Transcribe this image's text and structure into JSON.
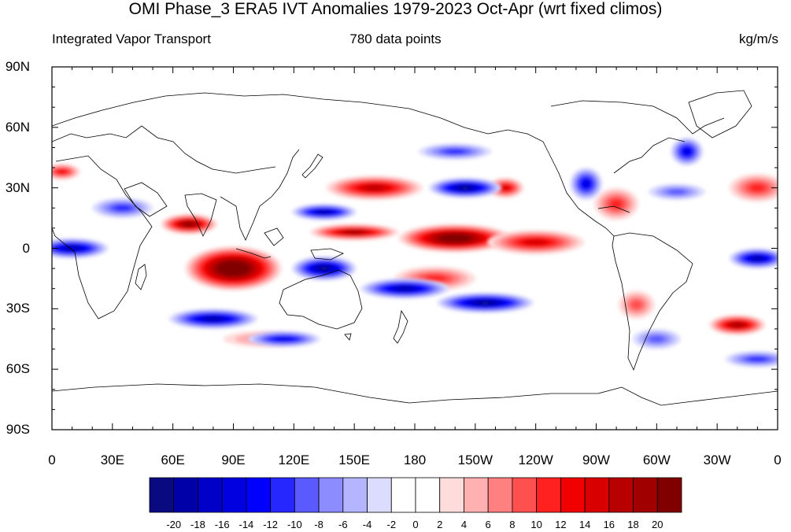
{
  "title": "OMI Phase_3 ERA5 IVT Anomalies 1979-2023 Oct-Apr (wrt fixed climos)",
  "left_string": "Integrated Vapor Transport",
  "center_string": "780 data points",
  "right_string": "kg/m/s",
  "y_ticks": [
    "90N",
    "60N",
    "30N",
    "0",
    "30S",
    "60S",
    "90S"
  ],
  "x_ticks": [
    "0",
    "30E",
    "60E",
    "90E",
    "120E",
    "150E",
    "180",
    "150W",
    "120W",
    "90W",
    "60W",
    "30W",
    "0"
  ],
  "colorbar": {
    "labels": [
      "-20",
      "-18",
      "-16",
      "-14",
      "-12",
      "-10",
      "-8",
      "-6",
      "-4",
      "-2",
      "0",
      "2",
      "4",
      "6",
      "8",
      "10",
      "12",
      "14",
      "16",
      "18",
      "20"
    ],
    "colors": [
      "#0a0a80",
      "#0000a8",
      "#0000c8",
      "#0000e0",
      "#0000ff",
      "#2626ff",
      "#5a5aff",
      "#8c8cff",
      "#b4b4ff",
      "#dcdcff",
      "#ffffff",
      "#ffffff",
      "#ffdcdc",
      "#ffb0b0",
      "#ff8080",
      "#ff5050",
      "#ff2020",
      "#f00000",
      "#d80000",
      "#b80000",
      "#a00000",
      "#800000"
    ]
  },
  "chart_data": {
    "type": "heatmap",
    "title": "OMI Phase_3 ERA5 IVT Anomalies 1979-2023 Oct-Apr (wrt fixed climos)",
    "variable": "Integrated Vapor Transport",
    "units": "kg/m/s",
    "n_points": 780,
    "lon_range": [
      0,
      360
    ],
    "lat_range": [
      -90,
      90
    ],
    "contour_levels": [
      -20,
      -18,
      -16,
      -14,
      -12,
      -10,
      -8,
      -6,
      -4,
      -2,
      0,
      2,
      4,
      6,
      8,
      10,
      12,
      14,
      16,
      18,
      20
    ],
    "anomalies": [
      {
        "lon": 90,
        "lat": -10,
        "value": 26,
        "rlon": 24,
        "rlat": 11
      },
      {
        "lon": 68,
        "lat": 12,
        "value": 20,
        "rlon": 14,
        "rlat": 5
      },
      {
        "lon": 150,
        "lat": 8,
        "value": 18,
        "rlon": 22,
        "rlat": 4
      },
      {
        "lon": 200,
        "lat": 5,
        "value": 24,
        "rlon": 28,
        "rlat": 7
      },
      {
        "lon": 240,
        "lat": 3,
        "value": 15,
        "rlon": 24,
        "rlat": 6
      },
      {
        "lon": 160,
        "lat": 30,
        "value": 16,
        "rlon": 24,
        "rlat": 6
      },
      {
        "lon": 225,
        "lat": 30,
        "value": 14,
        "rlon": 9,
        "rlat": 5
      },
      {
        "lon": 280,
        "lat": 22,
        "value": 10,
        "rlon": 11,
        "rlat": 8
      },
      {
        "lon": 350,
        "lat": 30,
        "value": 10,
        "rlon": 14,
        "rlat": 7
      },
      {
        "lon": 5,
        "lat": 38,
        "value": 12,
        "rlon": 9,
        "rlat": 4
      },
      {
        "lon": 340,
        "lat": -38,
        "value": 18,
        "rlon": 14,
        "rlat": 5
      },
      {
        "lon": 290,
        "lat": -28,
        "value": 9,
        "rlon": 9,
        "rlat": 7
      },
      {
        "lon": 190,
        "lat": -15,
        "value": 10,
        "rlon": 20,
        "rlat": 6
      },
      {
        "lon": 105,
        "lat": -45,
        "value": 7,
        "rlon": 20,
        "rlat": 4
      },
      {
        "lon": 10,
        "lat": 0,
        "value": -18,
        "rlon": 18,
        "rlat": 5
      },
      {
        "lon": 350,
        "lat": -5,
        "value": -18,
        "rlon": 14,
        "rlat": 5
      },
      {
        "lon": 135,
        "lat": -10,
        "value": -20,
        "rlon": 16,
        "rlat": 6
      },
      {
        "lon": 175,
        "lat": -20,
        "value": -18,
        "rlon": 22,
        "rlat": 5
      },
      {
        "lon": 215,
        "lat": -27,
        "value": -20,
        "rlon": 24,
        "rlat": 5
      },
      {
        "lon": 135,
        "lat": 18,
        "value": -18,
        "rlon": 16,
        "rlat": 4
      },
      {
        "lon": 205,
        "lat": 30,
        "value": -20,
        "rlon": 18,
        "rlat": 5
      },
      {
        "lon": 200,
        "lat": 48,
        "value": -10,
        "rlon": 18,
        "rlat": 4
      },
      {
        "lon": 265,
        "lat": 32,
        "value": -14,
        "rlon": 8,
        "rlat": 8
      },
      {
        "lon": 315,
        "lat": 48,
        "value": -14,
        "rlon": 8,
        "rlat": 7
      },
      {
        "lon": 310,
        "lat": 28,
        "value": -8,
        "rlon": 14,
        "rlat": 4
      },
      {
        "lon": 80,
        "lat": -35,
        "value": -18,
        "rlon": 22,
        "rlat": 5
      },
      {
        "lon": 115,
        "lat": -45,
        "value": -14,
        "rlon": 18,
        "rlat": 4
      },
      {
        "lon": 350,
        "lat": -55,
        "value": -10,
        "rlon": 16,
        "rlat": 4
      },
      {
        "lon": 35,
        "lat": 20,
        "value": -10,
        "rlon": 15,
        "rlat": 5
      },
      {
        "lon": 300,
        "lat": -45,
        "value": -8,
        "rlon": 12,
        "rlat": 5
      }
    ]
  }
}
